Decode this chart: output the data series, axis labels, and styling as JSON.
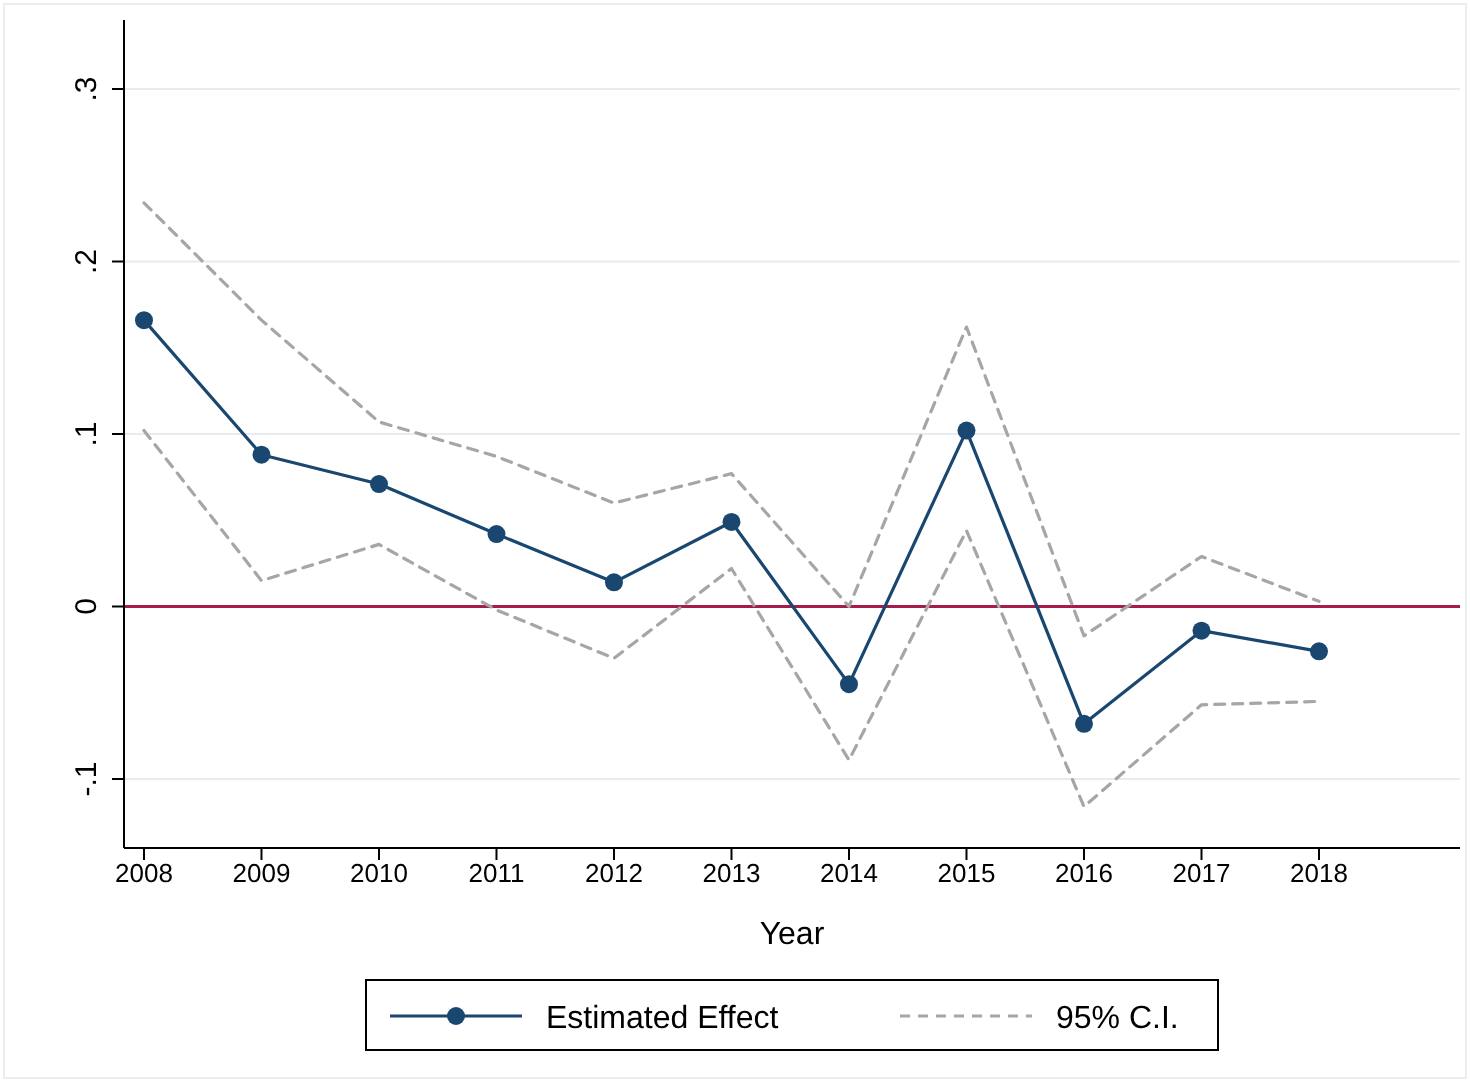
{
  "chart_data": {
    "type": "line",
    "xlabel": "Year",
    "x": [
      2008,
      2009,
      2010,
      2011,
      2012,
      2013,
      2014,
      2015,
      2016,
      2017,
      2018
    ],
    "xlim": [
      2007.83,
      2019.2
    ],
    "xticks": [
      2008,
      2009,
      2010,
      2011,
      2012,
      2013,
      2014,
      2015,
      2016,
      2017,
      2018
    ],
    "ylim": [
      -0.14,
      0.34
    ],
    "yticks": [
      {
        "value": -0.1,
        "label": "-.1"
      },
      {
        "value": 0,
        "label": "0"
      },
      {
        "value": 0.1,
        "label": ".1"
      },
      {
        "value": 0.2,
        "label": ".2"
      },
      {
        "value": 0.3,
        "label": ".3"
      }
    ],
    "grid": "y",
    "legend": "bottom",
    "series": [
      {
        "name": "Estimated Effect",
        "color": "#1a476f",
        "marker": "circle",
        "line_style": "solid",
        "values": [
          0.166,
          0.088,
          0.071,
          0.042,
          0.014,
          0.049,
          -0.045,
          0.102,
          -0.068,
          -0.014,
          -0.026
        ]
      },
      {
        "name": "95% C.I.",
        "color": "#a6a6a6",
        "marker": "none",
        "line_style": "dashed",
        "values": [
          0.234,
          0.166,
          0.107,
          0.087,
          0.06,
          0.077,
          0.0,
          0.162,
          -0.017,
          0.029,
          0.003
        ]
      },
      {
        "color": "#a6a6a6",
        "marker": "none",
        "line_style": "dashed",
        "values": [
          0.102,
          0.015,
          0.036,
          -0.002,
          -0.03,
          0.022,
          -0.089,
          0.044,
          -0.116,
          -0.057,
          -0.055
        ]
      }
    ],
    "ref_lines": [
      {
        "axis": "y",
        "value": 0,
        "color": "#a51d4a"
      }
    ]
  }
}
